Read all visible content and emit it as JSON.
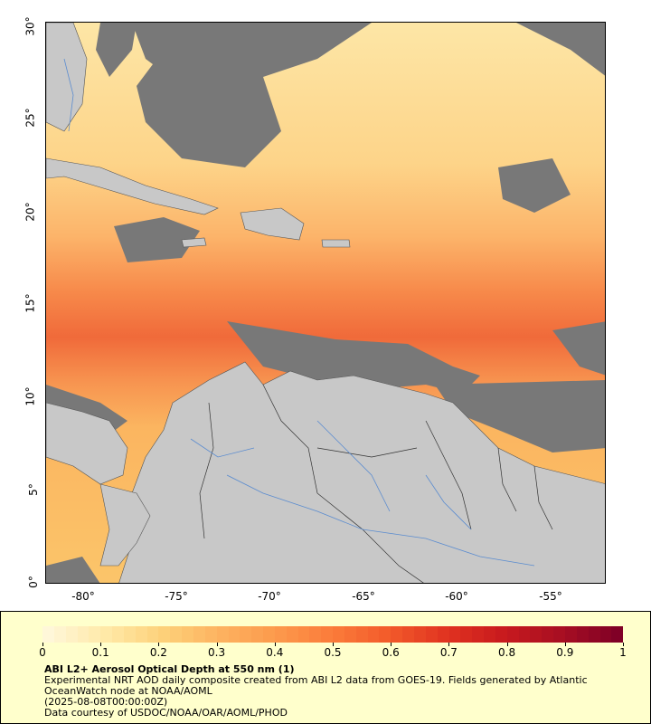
{
  "map": {
    "region": "Caribbean / Tropical Atlantic",
    "lat_axis_labels": [
      "30°",
      "25°",
      "20°",
      "15°",
      "10°",
      "5°",
      "0°"
    ],
    "lon_axis_labels": [
      "-80°",
      "-75°",
      "-70°",
      "-65°",
      "-60°",
      "-55°"
    ],
    "colors": {
      "land": "#c8c8c8",
      "no_data": "#787878",
      "country_border": "#444444",
      "river": "#5b8ccf"
    }
  },
  "legend": {
    "colorbar_ticks": [
      "0",
      "0.1",
      "0.2",
      "0.3",
      "0.4",
      "0.5",
      "0.6",
      "0.7",
      "0.8",
      "0.9",
      "1"
    ],
    "colorbar_colors": [
      "#fff7d9",
      "#ffe9a8",
      "#fdd17a",
      "#fdb360",
      "#fc9a4c",
      "#fb7b3a",
      "#f25a2a",
      "#e03320",
      "#c81a1e",
      "#a80f22",
      "#800026"
    ],
    "title": "ABI L2+ Aerosol Optical Depth at 550 nm (1)",
    "description": "Experimental NRT AOD daily composite created from ABI L2 data from GOES-19. Fields generated by Atlantic OceanWatch node at NOAA/AOML",
    "timestamp": "(2025-08-08T00:00:00Z)",
    "credit": "Data courtesy of USDOC/NOAA/OAR/AOML/PHOD"
  }
}
